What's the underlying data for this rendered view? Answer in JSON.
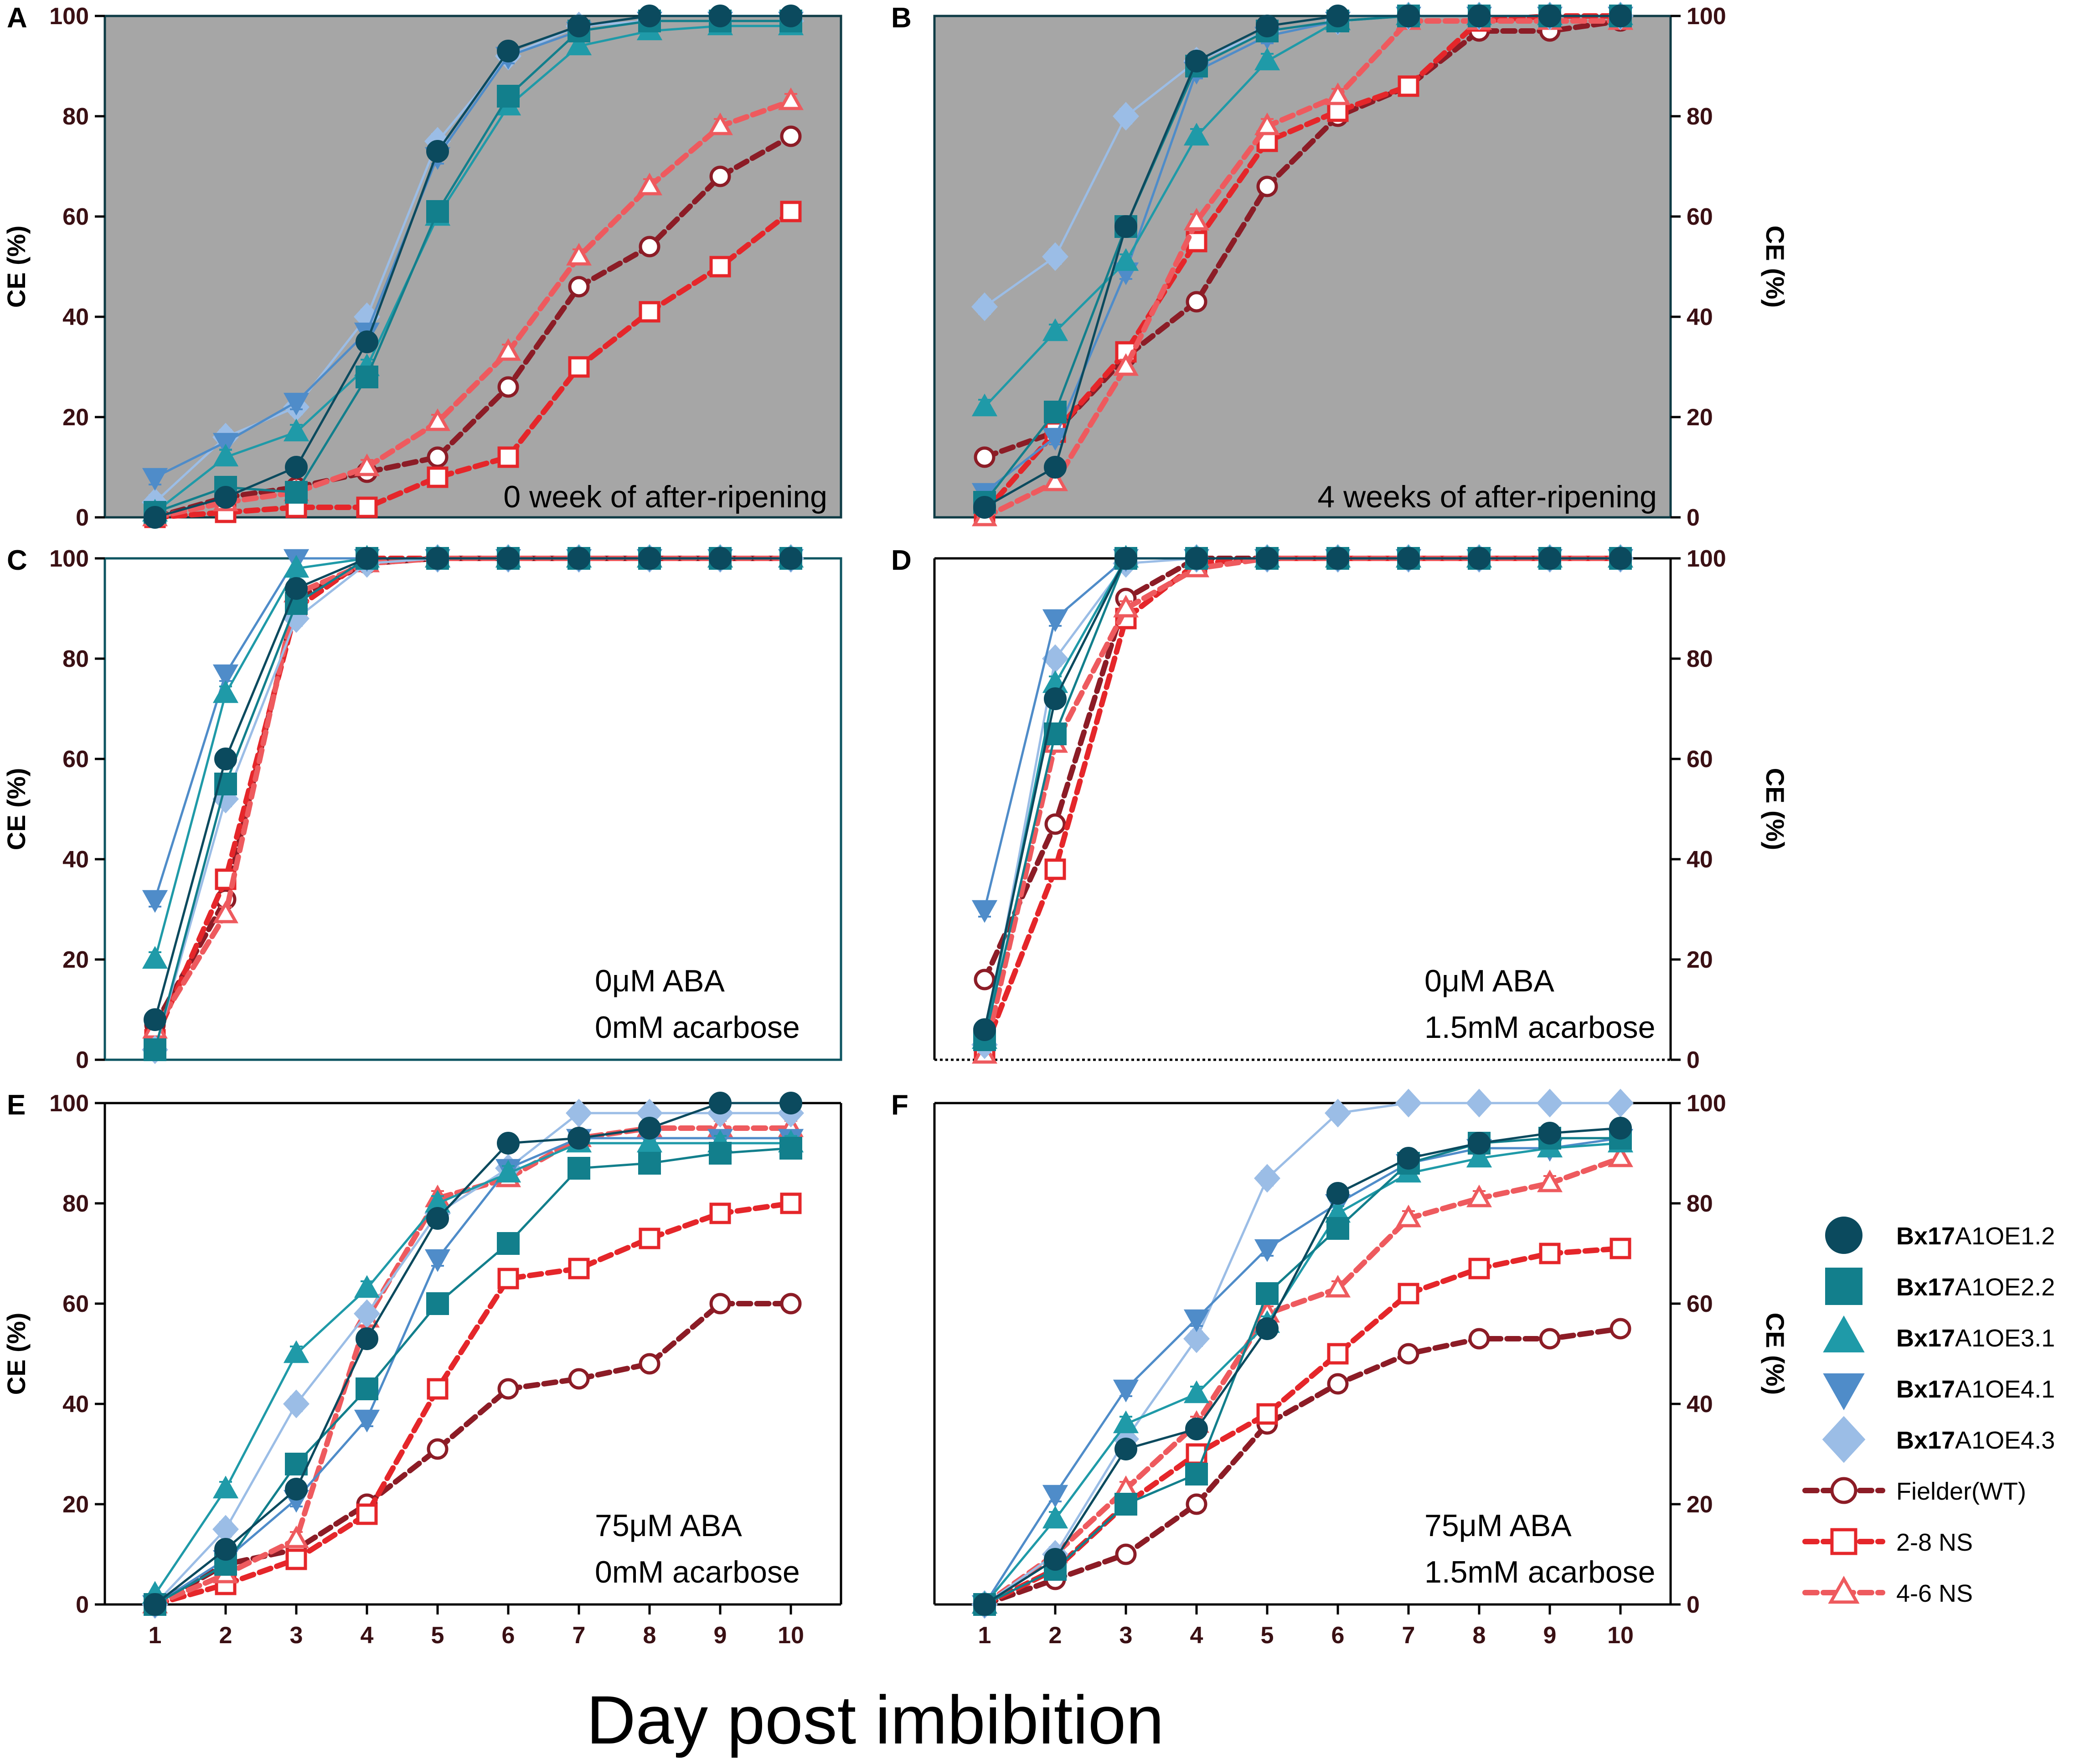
{
  "figure": {
    "x_title": "Day post imbibition",
    "y_label": "CE (%)"
  },
  "legend": [
    {
      "id": "s1",
      "bold": "Bx17",
      "rest": "A1OE1.2"
    },
    {
      "id": "s2",
      "bold": "Bx17",
      "rest": "A1OE2.2"
    },
    {
      "id": "s3",
      "bold": "Bx17",
      "rest": "A1OE3.1"
    },
    {
      "id": "s4",
      "bold": "Bx17",
      "rest": "A1OE4.1"
    },
    {
      "id": "s5",
      "bold": "Bx17",
      "rest": "A1OE4.3"
    },
    {
      "id": "wt",
      "bold": "",
      "rest": "Fielder(WT)"
    },
    {
      "id": "ns28",
      "bold": "",
      "rest": "2-8 NS"
    },
    {
      "id": "ns46",
      "bold": "",
      "rest": "4-6 NS"
    }
  ],
  "series_style": {
    "s1": {
      "color": "#0b4a5e",
      "marker": "circle",
      "filled": true,
      "dashed": false
    },
    "s2": {
      "color": "#127f8c",
      "marker": "square",
      "filled": true,
      "dashed": false
    },
    "s3": {
      "color": "#1f9aa8",
      "marker": "triangle-up",
      "filled": true,
      "dashed": false
    },
    "s4": {
      "color": "#4f8cc9",
      "marker": "triangle-down",
      "filled": true,
      "dashed": false
    },
    "s5": {
      "color": "#9bbde6",
      "marker": "diamond",
      "filled": true,
      "dashed": false
    },
    "wt": {
      "color": "#8c1c26",
      "marker": "circle",
      "filled": false,
      "dashed": true
    },
    "ns28": {
      "color": "#e5262a",
      "marker": "square",
      "filled": false,
      "dashed": true
    },
    "ns46": {
      "color": "#ee5a5e",
      "marker": "triangle-up",
      "filled": false,
      "dashed": true
    }
  },
  "chart_data": [
    {
      "type": "line",
      "panel": "A",
      "annotation": [
        "0 week of after-ripening"
      ],
      "background": "#a6a6a6",
      "x": [
        1,
        2,
        3,
        4,
        5,
        6,
        7,
        8,
        9,
        10
      ],
      "ylim": [
        0,
        100
      ],
      "yticks": [
        0,
        20,
        40,
        60,
        80,
        100
      ],
      "y_axis_side": "left",
      "series": [
        {
          "id": "s1",
          "values": [
            0,
            4,
            10,
            35,
            73,
            93,
            98,
            100,
            100,
            100
          ]
        },
        {
          "id": "s2",
          "values": [
            1,
            6,
            5,
            28,
            61,
            84,
            97,
            99,
            99,
            99
          ]
        },
        {
          "id": "s3",
          "values": [
            1,
            12,
            17,
            30,
            60,
            82,
            94,
            97,
            98,
            98
          ]
        },
        {
          "id": "s4",
          "values": [
            8,
            15,
            23,
            37,
            72,
            92,
            97,
            99,
            99,
            99
          ]
        },
        {
          "id": "s5",
          "values": [
            3,
            16,
            22,
            40,
            75,
            92,
            98,
            99,
            99,
            99
          ]
        },
        {
          "id": "wt",
          "values": [
            0,
            4,
            6,
            9,
            12,
            26,
            46,
            54,
            68,
            76
          ]
        },
        {
          "id": "ns28",
          "values": [
            0,
            1,
            2,
            2,
            8,
            12,
            30,
            41,
            50,
            61
          ]
        },
        {
          "id": "ns46",
          "values": [
            0,
            3,
            5,
            10,
            19,
            33,
            52,
            66,
            78,
            83
          ]
        }
      ]
    },
    {
      "type": "line",
      "panel": "B",
      "annotation": [
        "4 weeks of after-ripening"
      ],
      "background": "#a6a6a6",
      "x": [
        1,
        2,
        3,
        4,
        5,
        6,
        7,
        8,
        9,
        10
      ],
      "ylim": [
        0,
        100
      ],
      "yticks": [
        0,
        20,
        40,
        60,
        80,
        100
      ],
      "y_axis_side": "right",
      "series": [
        {
          "id": "s1",
          "values": [
            2,
            10,
            58,
            91,
            98,
            100,
            100,
            100,
            100,
            100
          ]
        },
        {
          "id": "s2",
          "values": [
            3,
            21,
            58,
            90,
            97,
            99,
            100,
            100,
            100,
            100
          ]
        },
        {
          "id": "s3",
          "values": [
            22,
            37,
            51,
            76,
            91,
            99,
            100,
            100,
            100,
            100
          ]
        },
        {
          "id": "s4",
          "values": [
            5,
            16,
            49,
            89,
            96,
            99,
            100,
            100,
            100,
            100
          ]
        },
        {
          "id": "s5",
          "values": [
            42,
            52,
            80,
            91,
            97,
            99,
            100,
            100,
            100,
            100
          ]
        },
        {
          "id": "wt",
          "values": [
            12,
            17,
            32,
            43,
            66,
            80,
            86,
            97,
            97,
            99
          ]
        },
        {
          "id": "ns28",
          "values": [
            1,
            17,
            33,
            55,
            75,
            81,
            86,
            99,
            100,
            100
          ]
        },
        {
          "id": "ns46",
          "values": [
            0,
            7,
            30,
            59,
            78,
            84,
            99,
            99,
            99,
            99
          ]
        }
      ]
    },
    {
      "type": "line",
      "panel": "C",
      "annotation": [
        "0μM ABA",
        "0mM acarbose"
      ],
      "background": "#ffffff",
      "x": [
        1,
        2,
        3,
        4,
        5,
        6,
        7,
        8,
        9,
        10
      ],
      "ylim": [
        0,
        100
      ],
      "yticks": [
        0,
        20,
        40,
        60,
        80,
        100
      ],
      "y_axis_side": "left",
      "series": [
        {
          "id": "s1",
          "values": [
            8,
            60,
            94,
            100,
            100,
            100,
            100,
            100,
            100,
            100
          ]
        },
        {
          "id": "s2",
          "values": [
            2,
            55,
            91,
            100,
            100,
            100,
            100,
            100,
            100,
            100
          ]
        },
        {
          "id": "s3",
          "values": [
            20,
            73,
            98,
            100,
            100,
            100,
            100,
            100,
            100,
            100
          ]
        },
        {
          "id": "s4",
          "values": [
            32,
            77,
            100,
            100,
            100,
            100,
            100,
            100,
            100,
            100
          ]
        },
        {
          "id": "s5",
          "values": [
            2,
            52,
            88,
            99,
            100,
            100,
            100,
            100,
            100,
            100
          ]
        },
        {
          "id": "wt",
          "values": [
            7,
            32,
            92,
            99,
            100,
            100,
            100,
            100,
            100,
            100
          ]
        },
        {
          "id": "ns28",
          "values": [
            4,
            36,
            90,
            100,
            100,
            100,
            100,
            100,
            100,
            100
          ]
        },
        {
          "id": "ns46",
          "values": [
            6,
            29,
            93,
            99,
            100,
            100,
            100,
            100,
            100,
            100
          ]
        }
      ]
    },
    {
      "type": "line",
      "panel": "D",
      "annotation": [
        "0μM ABA",
        "1.5mM acarbose"
      ],
      "background": "#ffffff",
      "x": [
        1,
        2,
        3,
        4,
        5,
        6,
        7,
        8,
        9,
        10
      ],
      "ylim": [
        0,
        100
      ],
      "yticks": [
        0,
        20,
        40,
        60,
        80,
        100
      ],
      "y_axis_side": "right",
      "series": [
        {
          "id": "s1",
          "values": [
            6,
            72,
            100,
            100,
            100,
            100,
            100,
            100,
            100,
            100
          ]
        },
        {
          "id": "s2",
          "values": [
            4,
            65,
            100,
            100,
            100,
            100,
            100,
            100,
            100,
            100
          ]
        },
        {
          "id": "s3",
          "values": [
            4,
            75,
            100,
            100,
            100,
            100,
            100,
            100,
            100,
            100
          ]
        },
        {
          "id": "s4",
          "values": [
            30,
            88,
            100,
            100,
            100,
            100,
            100,
            100,
            100,
            100
          ]
        },
        {
          "id": "s5",
          "values": [
            3,
            80,
            99,
            100,
            100,
            100,
            100,
            100,
            100,
            100
          ]
        },
        {
          "id": "wt",
          "values": [
            16,
            47,
            92,
            100,
            100,
            100,
            100,
            100,
            100,
            100
          ]
        },
        {
          "id": "ns28",
          "values": [
            2,
            38,
            88,
            99,
            100,
            100,
            100,
            100,
            100,
            100
          ]
        },
        {
          "id": "ns46",
          "values": [
            1,
            63,
            90,
            98,
            100,
            100,
            100,
            100,
            100,
            100
          ]
        }
      ]
    },
    {
      "type": "line",
      "panel": "E",
      "annotation": [
        "75μM ABA",
        "0mM acarbose"
      ],
      "background": "#ffffff",
      "x": [
        1,
        2,
        3,
        4,
        5,
        6,
        7,
        8,
        9,
        10
      ],
      "ylim": [
        0,
        100
      ],
      "yticks": [
        0,
        20,
        40,
        60,
        80,
        100
      ],
      "y_axis_side": "left",
      "series": [
        {
          "id": "s1",
          "values": [
            0,
            11,
            23,
            53,
            77,
            92,
            93,
            95,
            100,
            100
          ]
        },
        {
          "id": "s2",
          "values": [
            0,
            8,
            28,
            43,
            60,
            72,
            87,
            88,
            90,
            91
          ]
        },
        {
          "id": "s3",
          "values": [
            2,
            23,
            50,
            63,
            80,
            86,
            92,
            92,
            92,
            92
          ]
        },
        {
          "id": "s4",
          "values": [
            0,
            9,
            21,
            37,
            69,
            87,
            93,
            93,
            93,
            93
          ]
        },
        {
          "id": "s5",
          "values": [
            0,
            15,
            40,
            58,
            78,
            87,
            98,
            98,
            98,
            98
          ]
        },
        {
          "id": "wt",
          "values": [
            0,
            8,
            11,
            20,
            31,
            43,
            45,
            48,
            60,
            60
          ]
        },
        {
          "id": "ns28",
          "values": [
            0,
            4,
            9,
            18,
            43,
            65,
            67,
            73,
            78,
            80
          ]
        },
        {
          "id": "ns46",
          "values": [
            0,
            6,
            13,
            57,
            81,
            85,
            93,
            95,
            95,
            95
          ]
        }
      ]
    },
    {
      "type": "line",
      "panel": "F",
      "annotation": [
        "75μM ABA",
        "1.5mM acarbose"
      ],
      "background": "#ffffff",
      "x": [
        1,
        2,
        3,
        4,
        5,
        6,
        7,
        8,
        9,
        10
      ],
      "ylim": [
        0,
        100
      ],
      "yticks": [
        0,
        20,
        40,
        60,
        80,
        100
      ],
      "y_axis_side": "right",
      "series": [
        {
          "id": "s1",
          "values": [
            0,
            9,
            31,
            35,
            55,
            82,
            89,
            92,
            94,
            95
          ]
        },
        {
          "id": "s2",
          "values": [
            0,
            7,
            20,
            26,
            62,
            75,
            88,
            92,
            93,
            93
          ]
        },
        {
          "id": "s3",
          "values": [
            0,
            17,
            36,
            42,
            56,
            78,
            86,
            89,
            91,
            92
          ]
        },
        {
          "id": "s4",
          "values": [
            0,
            22,
            43,
            57,
            71,
            80,
            88,
            91,
            91,
            93
          ]
        },
        {
          "id": "s5",
          "values": [
            0,
            10,
            33,
            53,
            85,
            98,
            100,
            100,
            100,
            100
          ]
        },
        {
          "id": "wt",
          "values": [
            0,
            5,
            10,
            20,
            36,
            44,
            50,
            53,
            53,
            55
          ]
        },
        {
          "id": "ns28",
          "values": [
            0,
            7,
            20,
            30,
            38,
            50,
            62,
            67,
            70,
            71
          ]
        },
        {
          "id": "ns46",
          "values": [
            0,
            10,
            23,
            36,
            58,
            63,
            77,
            81,
            84,
            89
          ]
        }
      ]
    }
  ]
}
